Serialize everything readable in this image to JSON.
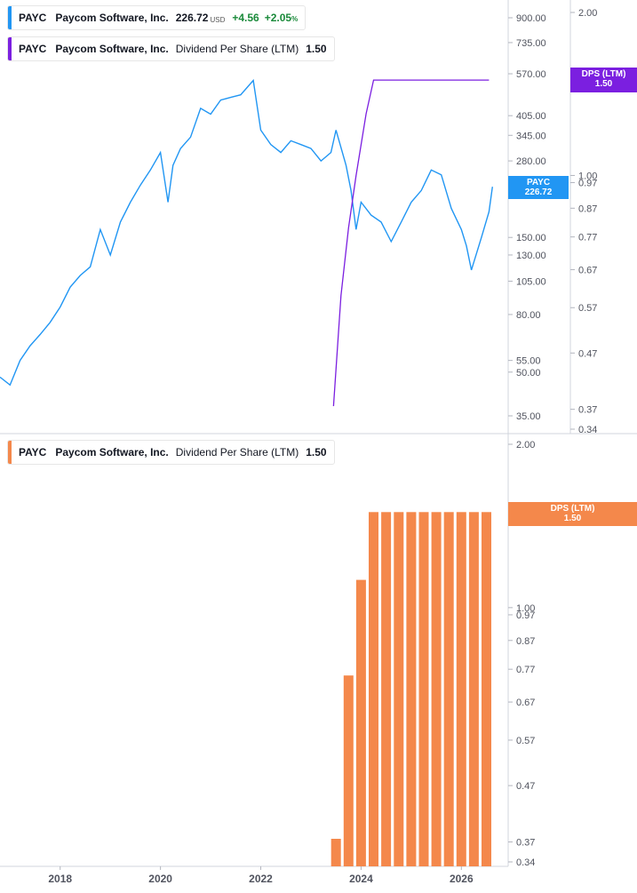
{
  "legends": {
    "price": {
      "ticker": "PAYC",
      "company": "Paycom Software, Inc.",
      "price": "226.72",
      "unit": "USD",
      "change": "+4.56",
      "change_pct": "+2.05",
      "pct_sign": "%",
      "color": "#2196f3"
    },
    "dps_line": {
      "ticker": "PAYC",
      "company": "Paycom Software, Inc.",
      "metric": "Dividend Per Share (LTM)",
      "value": "1.50",
      "color": "#7b1fe0"
    },
    "dps_bars": {
      "ticker": "PAYC",
      "company": "Paycom Software, Inc.",
      "metric": "Dividend Per Share (LTM)",
      "value": "1.50",
      "color": "#f4884b"
    }
  },
  "tags": {
    "price": {
      "line1": "PAYC",
      "line2": "226.72"
    },
    "dps_top": {
      "line1": "DPS (LTM)",
      "line2": "1.50"
    },
    "dps_bottom": {
      "line1": "DPS (LTM)",
      "line2": "1.50"
    }
  },
  "chart_data": [
    {
      "type": "line",
      "series": [
        {
          "name": "PAYC",
          "color": "#2196f3",
          "x": [
            2016.8,
            2017.0,
            2017.2,
            2017.4,
            2017.6,
            2017.8,
            2018.0,
            2018.2,
            2018.4,
            2018.6,
            2018.8,
            2019.0,
            2019.2,
            2019.4,
            2019.6,
            2019.8,
            2020.0,
            2020.15,
            2020.25,
            2020.4,
            2020.6,
            2020.8,
            2021.0,
            2021.2,
            2021.4,
            2021.6,
            2021.85,
            2022.0,
            2022.2,
            2022.4,
            2022.6,
            2022.8,
            2023.0,
            2023.2,
            2023.4,
            2023.5,
            2023.7,
            2023.8,
            2023.9,
            2024.0,
            2024.2,
            2024.4,
            2024.6,
            2024.8,
            2025.0,
            2025.2,
            2025.4,
            2025.6,
            2025.8,
            2026.0,
            2026.1,
            2026.2,
            2026.4,
            2026.55,
            2026.62
          ],
          "y": [
            48,
            45,
            55,
            62,
            68,
            75,
            85,
            100,
            110,
            118,
            160,
            130,
            170,
            200,
            230,
            260,
            300,
            200,
            270,
            310,
            340,
            430,
            410,
            460,
            470,
            480,
            540,
            360,
            320,
            300,
            330,
            320,
            310,
            280,
            300,
            360,
            270,
            220,
            160,
            200,
            180,
            170,
            145,
            170,
            200,
            220,
            260,
            250,
            190,
            160,
            140,
            115,
            150,
            185,
            226.72
          ]
        }
      ],
      "y_scale": "log",
      "y_ticks": [
        "900.00",
        "735.00",
        "570.00",
        "405.00",
        "345.00",
        "280.00",
        "150.00",
        "130.00",
        "105.00",
        "80.00",
        "55.00",
        "50.00",
        "35.00"
      ]
    },
    {
      "type": "line",
      "series": [
        {
          "name": "Dividend Per Share (LTM)",
          "color": "#7b1fe0",
          "x": [
            2023.45,
            2023.6,
            2023.75,
            2023.9,
            2024.1,
            2024.25,
            2026.55
          ],
          "y": [
            0.375,
            0.6,
            0.8,
            1.0,
            1.3,
            1.5,
            1.5
          ]
        }
      ],
      "y_scale": "log",
      "y_ticks": [
        "2.00",
        "1.00",
        "0.97",
        "0.87",
        "0.77",
        "0.67",
        "0.57",
        "0.47",
        "0.37",
        "0.34"
      ]
    },
    {
      "type": "bar",
      "series": [
        {
          "name": "Dividend Per Share (LTM)",
          "color": "#f4884b",
          "x": [
            2023.5,
            2023.75,
            2024.0,
            2024.25,
            2024.5,
            2024.75,
            2025.0,
            2025.25,
            2025.5,
            2025.75,
            2026.0,
            2026.25,
            2026.5
          ],
          "values": [
            0.375,
            0.75,
            1.125,
            1.5,
            1.5,
            1.5,
            1.5,
            1.5,
            1.5,
            1.5,
            1.5,
            1.5,
            1.5
          ]
        }
      ],
      "y_scale": "log",
      "y_ticks": [
        "2.00",
        "1.00",
        "0.97",
        "0.87",
        "0.77",
        "0.67",
        "0.57",
        "0.47",
        "0.37",
        "0.34"
      ]
    }
  ],
  "x_axis": {
    "ticks": [
      "2018",
      "2020",
      "2022",
      "2024",
      "2026"
    ]
  }
}
